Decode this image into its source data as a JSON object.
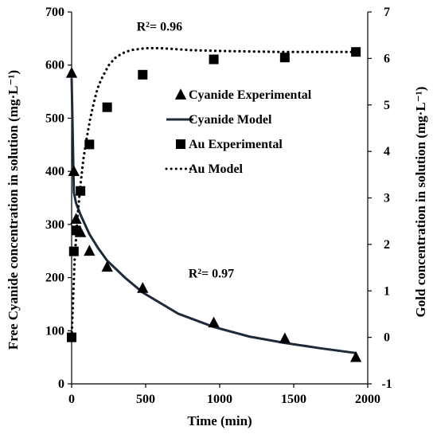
{
  "chart_data": {
    "type": "scatter",
    "xlabel": "Time (min)",
    "ylabel_left": "Free Cyanide concentration in solution (mg·L⁻¹)",
    "ylabel_right": "Gold concentration in solution (mg·L⁻¹)",
    "xlim": [
      0,
      2000
    ],
    "ylim_left": [
      0,
      700
    ],
    "ylim_right": [
      -1,
      7
    ],
    "x_ticks": [
      "0",
      "500",
      "1000",
      "1500",
      "2000"
    ],
    "y_left_ticks": [
      "0",
      "100",
      "200",
      "300",
      "400",
      "500",
      "600",
      "700"
    ],
    "y_right_ticks": [
      "-1",
      "0",
      "1",
      "2",
      "3",
      "4",
      "5",
      "6",
      "7"
    ],
    "grid": false,
    "legend_position": "center-right",
    "annotations": [
      {
        "text": "R²= 0.96",
        "x": 600,
        "y_left": 665
      },
      {
        "text": "R²= 0.97",
        "x": 950,
        "y_left": 200
      }
    ],
    "series": [
      {
        "name": "Cyanide Experimental",
        "axis": "left",
        "marker": "triangle",
        "color": "#000000",
        "x": [
          0,
          15,
          30,
          60,
          120,
          240,
          480,
          960,
          1440,
          1920
        ],
        "y": [
          585,
          400,
          310,
          285,
          250,
          220,
          180,
          115,
          85,
          50
        ]
      },
      {
        "name": "Cyanide Model",
        "axis": "left",
        "line": "solid",
        "color": "#1c2a3a",
        "x": [
          0,
          15,
          30,
          60,
          120,
          180,
          240,
          360,
          480,
          720,
          960,
          1200,
          1440,
          1680,
          1920
        ],
        "y": [
          575,
          360,
          340,
          318,
          282,
          255,
          232,
          200,
          172,
          132,
          107,
          89,
          77,
          67,
          58
        ]
      },
      {
        "name": "Au Experimental",
        "axis": "right",
        "marker": "square",
        "color": "#000000",
        "x": [
          0,
          15,
          30,
          60,
          120,
          240,
          480,
          960,
          1440,
          1920
        ],
        "y": [
          0.0,
          1.85,
          2.3,
          3.15,
          4.15,
          4.95,
          5.65,
          5.98,
          6.02,
          6.14
        ]
      },
      {
        "name": "Au Model",
        "axis": "right",
        "line": "dotted",
        "color": "#000000",
        "x": [
          0,
          20,
          40,
          60,
          80,
          100,
          125,
          150,
          175,
          200,
          250,
          300,
          350,
          400,
          500,
          600,
          700,
          800,
          1000,
          1200,
          1400,
          1600,
          1800,
          1920
        ],
        "y": [
          0.0,
          1.65,
          2.6,
          3.3,
          3.85,
          4.25,
          4.7,
          5.05,
          5.35,
          5.55,
          5.85,
          6.03,
          6.12,
          6.18,
          6.22,
          6.22,
          6.2,
          6.18,
          6.16,
          6.15,
          6.14,
          6.14,
          6.14,
          6.14
        ]
      }
    ]
  }
}
